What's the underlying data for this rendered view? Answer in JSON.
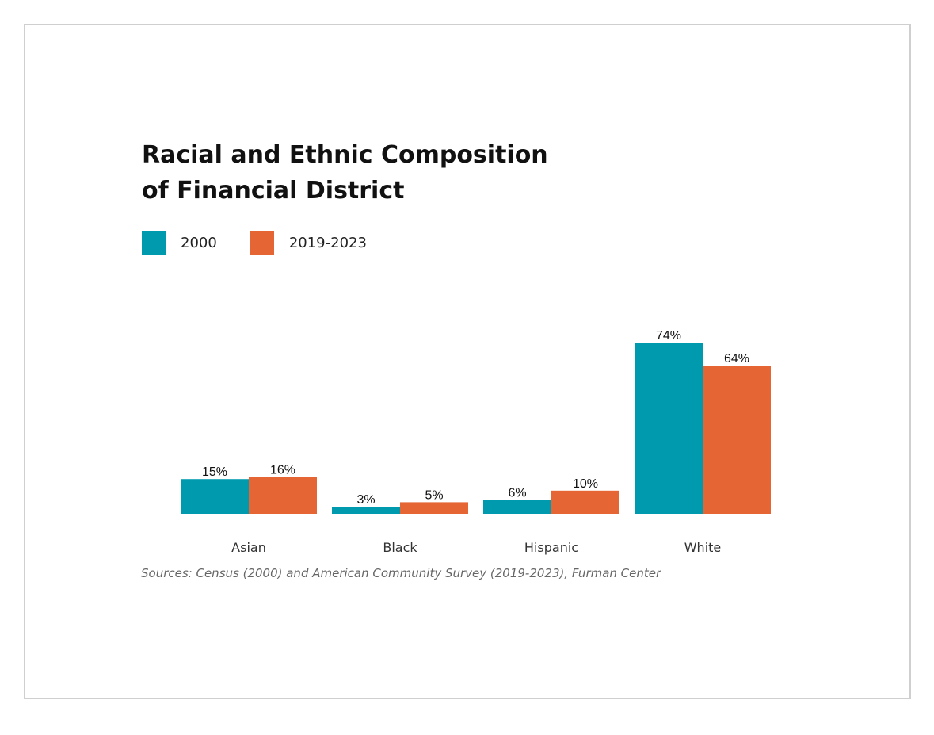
{
  "chart_data": {
    "type": "bar",
    "title_line1": "Racial and Ethnic Composition",
    "title_line2": "of Financial District",
    "categories": [
      "Asian",
      "Black",
      "Hispanic",
      "White"
    ],
    "series": [
      {
        "name": "2000",
        "color": "#009aaf",
        "values": [
          15,
          3,
          6,
          74
        ],
        "labels": [
          "15%",
          "3%",
          "6%",
          "74%"
        ]
      },
      {
        "name": "2019-2023",
        "color": "#e56535",
        "values": [
          16,
          5,
          10,
          64
        ],
        "labels": [
          "16%",
          "5%",
          "10%",
          "64%"
        ]
      }
    ],
    "ylim": [
      0,
      74
    ],
    "grid": false,
    "legend_placement": "top-left",
    "source": "Sources: Census (2000) and American Community Survey (2019-2023), Furman Center"
  }
}
